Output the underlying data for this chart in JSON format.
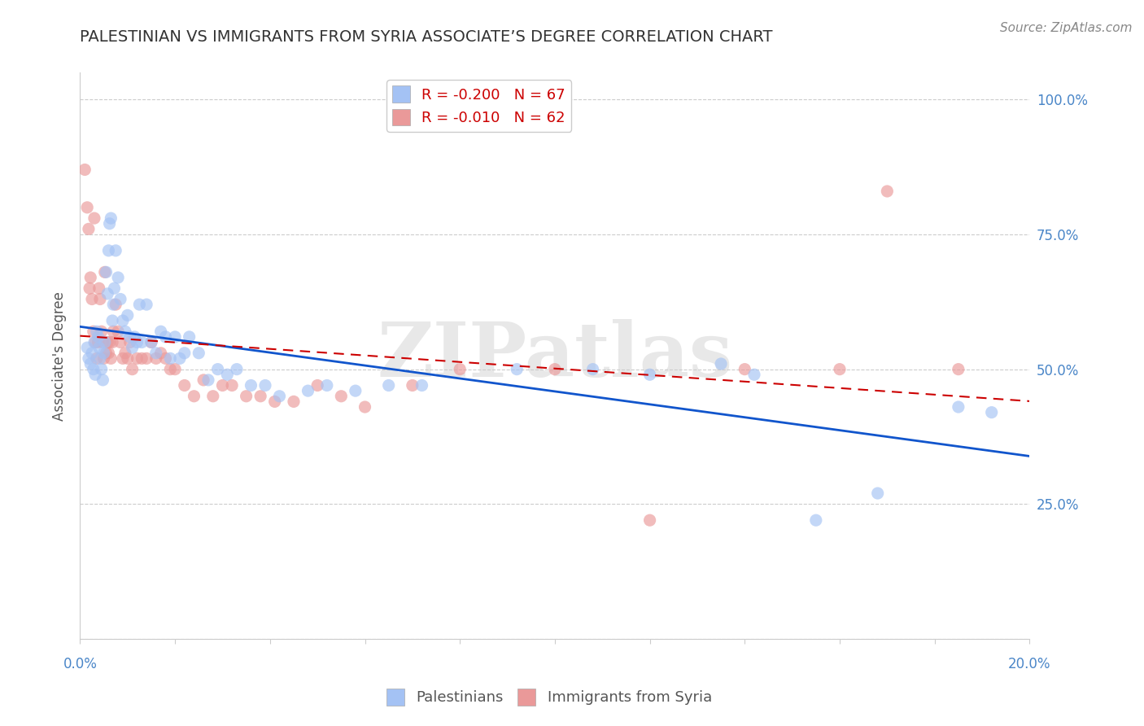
{
  "title": "PALESTINIAN VS IMMIGRANTS FROM SYRIA ASSOCIATE’S DEGREE CORRELATION CHART",
  "source": "Source: ZipAtlas.com",
  "ylabel": "Associate's Degree",
  "ytick_values": [
    0,
    25,
    50,
    75,
    100
  ],
  "xlim": [
    0,
    20
  ],
  "ylim": [
    0,
    105
  ],
  "legend_label1": "Palestinians",
  "legend_label2": "Immigrants from Syria",
  "blue_color": "#a4c2f4",
  "pink_color": "#ea9999",
  "blue_line_color": "#1155cc",
  "pink_line_color": "#cc0000",
  "watermark_text": "ZIPatlas",
  "blue_x": [
    0.15,
    0.18,
    0.22,
    0.25,
    0.28,
    0.3,
    0.32,
    0.35,
    0.38,
    0.4,
    0.42,
    0.45,
    0.48,
    0.5,
    0.52,
    0.55,
    0.58,
    0.6,
    0.62,
    0.65,
    0.68,
    0.7,
    0.72,
    0.75,
    0.8,
    0.85,
    0.9,
    0.95,
    1.0,
    1.05,
    1.1,
    1.15,
    1.2,
    1.25,
    1.3,
    1.4,
    1.5,
    1.6,
    1.7,
    1.8,
    1.9,
    2.0,
    2.1,
    2.2,
    2.3,
    2.5,
    2.7,
    2.9,
    3.1,
    3.3,
    3.6,
    3.9,
    4.2,
    4.8,
    5.2,
    5.8,
    6.5,
    7.2,
    9.2,
    10.8,
    12.0,
    13.5,
    14.2,
    15.5,
    16.8,
    18.5,
    19.2
  ],
  "blue_y": [
    54,
    52,
    51,
    53,
    50,
    55,
    49,
    57,
    56,
    54,
    52,
    50,
    48,
    53,
    55,
    68,
    64,
    72,
    77,
    78,
    59,
    62,
    65,
    72,
    67,
    63,
    59,
    57,
    60,
    56,
    54,
    56,
    55,
    62,
    55,
    62,
    55,
    53,
    57,
    56,
    52,
    56,
    52,
    53,
    56,
    53,
    48,
    50,
    49,
    50,
    47,
    47,
    45,
    46,
    47,
    46,
    47,
    47,
    50,
    50,
    49,
    51,
    49,
    22,
    27,
    43,
    42
  ],
  "pink_x": [
    0.1,
    0.15,
    0.18,
    0.2,
    0.22,
    0.25,
    0.28,
    0.3,
    0.32,
    0.35,
    0.38,
    0.4,
    0.42,
    0.45,
    0.48,
    0.5,
    0.52,
    0.55,
    0.58,
    0.6,
    0.62,
    0.65,
    0.68,
    0.7,
    0.75,
    0.8,
    0.85,
    0.9,
    0.95,
    1.0,
    1.05,
    1.1,
    1.2,
    1.3,
    1.4,
    1.5,
    1.6,
    1.7,
    1.8,
    1.9,
    2.0,
    2.2,
    2.4,
    2.6,
    2.8,
    3.0,
    3.2,
    3.5,
    3.8,
    4.1,
    4.5,
    5.0,
    5.5,
    6.0,
    7.0,
    8.0,
    10.0,
    12.0,
    14.0,
    16.0,
    17.0,
    18.5
  ],
  "pink_y": [
    87,
    80,
    76,
    65,
    67,
    63,
    57,
    78,
    55,
    52,
    55,
    65,
    63,
    57,
    55,
    52,
    68,
    53,
    55,
    53,
    55,
    52,
    55,
    57,
    62,
    57,
    55,
    52,
    53,
    52,
    55,
    50,
    52,
    52,
    52,
    55,
    52,
    53,
    52,
    50,
    50,
    47,
    45,
    48,
    45,
    47,
    47,
    45,
    45,
    44,
    44,
    47,
    45,
    43,
    47,
    50,
    50,
    22,
    50,
    50,
    83,
    50
  ],
  "blue_R": -0.2,
  "pink_R": -0.01,
  "blue_N": 67,
  "pink_N": 62,
  "grid_color": "#cccccc",
  "tick_color": "#4a86c8",
  "background_color": "#ffffff",
  "title_fontsize": 14,
  "axis_label_fontsize": 12,
  "tick_fontsize": 12,
  "legend_fontsize": 13,
  "source_fontsize": 11,
  "marker_size": 10,
  "marker_alpha": 0.65
}
